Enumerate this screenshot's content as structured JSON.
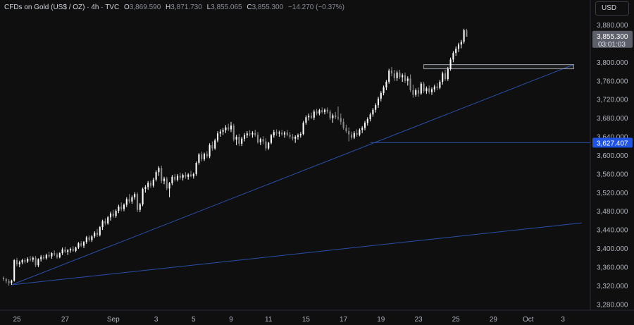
{
  "header": {
    "symbol": "CFDs on Gold (US$ / OZ)",
    "interval": "4h",
    "source": "TVC",
    "o_label": "O",
    "o": "3,869.590",
    "h_label": "H",
    "h": "3,871.730",
    "l_label": "L",
    "l": "3,855.065",
    "c_label": "C",
    "c": "3,855.300",
    "change": "−14.270 (−0.37%)"
  },
  "currency_button": "USD",
  "colors": {
    "background": "#0f0f0f",
    "candle_up": "#ffffff",
    "candle_down": "#8c8c8c",
    "trendline": "#2a4fa8",
    "support_label": "#1e53e5",
    "price_label": "#5d606b"
  },
  "chart_data": {
    "type": "candlestick",
    "title": "",
    "ylim": [
      3260,
      3900
    ],
    "y_ticks": [
      "3,880.000",
      "3,840.000",
      "3,800.000",
      "3,760.000",
      "3,720.000",
      "3,680.000",
      "3,640.000",
      "3,600.000",
      "3,560.000",
      "3,520.000",
      "3,480.000",
      "3,440.000",
      "3,400.000",
      "3,360.000",
      "3,320.000",
      "3,280.000"
    ],
    "y_tick_values": [
      3880,
      3840,
      3800,
      3760,
      3720,
      3680,
      3640,
      3600,
      3560,
      3520,
      3480,
      3440,
      3400,
      3360,
      3320,
      3280
    ],
    "x_ticks": [
      "25",
      "27",
      "Sep",
      "3",
      "5",
      "9",
      "11",
      "15",
      "17",
      "19",
      "23",
      "25",
      "29",
      "Oct",
      "3"
    ],
    "x_tick_index": [
      5,
      23,
      41,
      57,
      71,
      85,
      99,
      113,
      127,
      141,
      155,
      169,
      183,
      196,
      209
    ],
    "x_count": 216,
    "last_price_label": "3,855.300",
    "countdown_label": "03:01:03",
    "last_price": 3855.3,
    "support_label": "3,627.407",
    "support_value": 3627.407,
    "support_from_index": 137,
    "resistance_box": {
      "from_index": 157,
      "to_index": 213,
      "low": 3786,
      "high": 3795
    },
    "trendlines": [
      {
        "from": [
          3,
          3322
        ],
        "to": [
          213,
          3795
        ]
      },
      {
        "from": [
          3,
          3322
        ],
        "to": [
          216,
          3455
        ]
      }
    ],
    "series": [
      {
        "values": [
          [
            3337,
            3340,
            3330,
            3334
          ],
          [
            3334,
            3337,
            3325,
            3330
          ],
          [
            3330,
            3334,
            3320,
            3326
          ],
          [
            3326,
            3333,
            3322,
            3331
          ],
          [
            3331,
            3377,
            3329,
            3375
          ],
          [
            3375,
            3380,
            3362,
            3366
          ],
          [
            3366,
            3374,
            3360,
            3370
          ],
          [
            3370,
            3378,
            3366,
            3375
          ],
          [
            3375,
            3379,
            3368,
            3372
          ],
          [
            3372,
            3381,
            3369,
            3378
          ],
          [
            3378,
            3384,
            3372,
            3376
          ],
          [
            3376,
            3383,
            3371,
            3380
          ],
          [
            3380,
            3384,
            3360,
            3364
          ],
          [
            3364,
            3379,
            3360,
            3377
          ],
          [
            3377,
            3386,
            3372,
            3382
          ],
          [
            3382,
            3386,
            3376,
            3379
          ],
          [
            3379,
            3389,
            3376,
            3386
          ],
          [
            3386,
            3393,
            3380,
            3383
          ],
          [
            3383,
            3392,
            3378,
            3390
          ],
          [
            3390,
            3396,
            3384,
            3387
          ],
          [
            3387,
            3391,
            3378,
            3381
          ],
          [
            3381,
            3392,
            3379,
            3390
          ],
          [
            3390,
            3402,
            3386,
            3398
          ],
          [
            3398,
            3404,
            3390,
            3393
          ],
          [
            3393,
            3399,
            3386,
            3396
          ],
          [
            3396,
            3402,
            3391,
            3399
          ],
          [
            3399,
            3405,
            3393,
            3395
          ],
          [
            3395,
            3404,
            3392,
            3402
          ],
          [
            3402,
            3414,
            3399,
            3411
          ],
          [
            3411,
            3416,
            3403,
            3406
          ],
          [
            3406,
            3416,
            3401,
            3414
          ],
          [
            3414,
            3427,
            3410,
            3424
          ],
          [
            3424,
            3428,
            3415,
            3418
          ],
          [
            3418,
            3429,
            3414,
            3426
          ],
          [
            3426,
            3437,
            3422,
            3434
          ],
          [
            3434,
            3442,
            3425,
            3429
          ],
          [
            3429,
            3448,
            3426,
            3446
          ],
          [
            3446,
            3462,
            3440,
            3459
          ],
          [
            3459,
            3465,
            3450,
            3454
          ],
          [
            3454,
            3470,
            3451,
            3467
          ],
          [
            3467,
            3479,
            3460,
            3475
          ],
          [
            3475,
            3483,
            3466,
            3470
          ],
          [
            3470,
            3484,
            3466,
            3481
          ],
          [
            3481,
            3494,
            3476,
            3490
          ],
          [
            3490,
            3499,
            3480,
            3485
          ],
          [
            3485,
            3497,
            3480,
            3494
          ],
          [
            3494,
            3510,
            3489,
            3506
          ],
          [
            3506,
            3517,
            3497,
            3501
          ],
          [
            3501,
            3514,
            3496,
            3510
          ],
          [
            3510,
            3521,
            3505,
            3517
          ],
          [
            3517,
            3521,
            3478,
            3483
          ],
          [
            3483,
            3498,
            3478,
            3495
          ],
          [
            3495,
            3531,
            3491,
            3528
          ],
          [
            3528,
            3536,
            3520,
            3532
          ],
          [
            3532,
            3545,
            3526,
            3541
          ],
          [
            3541,
            3546,
            3530,
            3535
          ],
          [
            3535,
            3552,
            3531,
            3548
          ],
          [
            3548,
            3568,
            3544,
            3564
          ],
          [
            3564,
            3577,
            3556,
            3573
          ],
          [
            3573,
            3578,
            3540,
            3545
          ],
          [
            3545,
            3554,
            3538,
            3550
          ],
          [
            3550,
            3554,
            3525,
            3529
          ],
          [
            3529,
            3543,
            3510,
            3540
          ],
          [
            3540,
            3558,
            3536,
            3554
          ],
          [
            3554,
            3560,
            3544,
            3548
          ],
          [
            3548,
            3560,
            3544,
            3556
          ],
          [
            3556,
            3563,
            3548,
            3552
          ],
          [
            3552,
            3561,
            3546,
            3558
          ],
          [
            3558,
            3564,
            3550,
            3554
          ],
          [
            3554,
            3562,
            3548,
            3559
          ],
          [
            3559,
            3567,
            3553,
            3555
          ],
          [
            3555,
            3563,
            3550,
            3560
          ],
          [
            3560,
            3587,
            3556,
            3584
          ],
          [
            3584,
            3605,
            3580,
            3602
          ],
          [
            3602,
            3608,
            3587,
            3592
          ],
          [
            3592,
            3606,
            3588,
            3603
          ],
          [
            3603,
            3609,
            3594,
            3598
          ],
          [
            3598,
            3626,
            3594,
            3622
          ],
          [
            3622,
            3630,
            3610,
            3615
          ],
          [
            3615,
            3636,
            3612,
            3632
          ],
          [
            3632,
            3652,
            3628,
            3647
          ],
          [
            3647,
            3656,
            3640,
            3651
          ],
          [
            3651,
            3659,
            3644,
            3654
          ],
          [
            3654,
            3665,
            3648,
            3660
          ],
          [
            3660,
            3668,
            3652,
            3656
          ],
          [
            3656,
            3672,
            3650,
            3664
          ],
          [
            3664,
            3668,
            3630,
            3634
          ],
          [
            3634,
            3644,
            3622,
            3640
          ],
          [
            3640,
            3646,
            3620,
            3625
          ],
          [
            3625,
            3640,
            3620,
            3636
          ],
          [
            3636,
            3648,
            3630,
            3643
          ],
          [
            3643,
            3652,
            3637,
            3647
          ],
          [
            3647,
            3654,
            3641,
            3645
          ],
          [
            3645,
            3652,
            3638,
            3648
          ],
          [
            3648,
            3655,
            3640,
            3644
          ],
          [
            3644,
            3650,
            3625,
            3628
          ],
          [
            3628,
            3638,
            3622,
            3635
          ],
          [
            3635,
            3641,
            3624,
            3630
          ],
          [
            3630,
            3637,
            3610,
            3615
          ],
          [
            3615,
            3629,
            3612,
            3627
          ],
          [
            3627,
            3646,
            3624,
            3643
          ],
          [
            3643,
            3655,
            3638,
            3650
          ],
          [
            3650,
            3656,
            3642,
            3647
          ],
          [
            3647,
            3653,
            3640,
            3649
          ],
          [
            3649,
            3655,
            3642,
            3645
          ],
          [
            3645,
            3652,
            3638,
            3649
          ],
          [
            3649,
            3655,
            3641,
            3644
          ],
          [
            3644,
            3650,
            3636,
            3640
          ],
          [
            3640,
            3646,
            3632,
            3636
          ],
          [
            3636,
            3643,
            3627,
            3640
          ],
          [
            3640,
            3647,
            3634,
            3643
          ],
          [
            3643,
            3650,
            3638,
            3646
          ],
          [
            3646,
            3674,
            3643,
            3670
          ],
          [
            3670,
            3686,
            3666,
            3682
          ],
          [
            3682,
            3690,
            3675,
            3685
          ],
          [
            3685,
            3692,
            3678,
            3681
          ],
          [
            3681,
            3698,
            3676,
            3694
          ],
          [
            3694,
            3700,
            3686,
            3690
          ],
          [
            3690,
            3700,
            3686,
            3697
          ],
          [
            3697,
            3703,
            3690,
            3693
          ],
          [
            3693,
            3701,
            3688,
            3698
          ],
          [
            3698,
            3703,
            3690,
            3694
          ],
          [
            3694,
            3698,
            3676,
            3680
          ],
          [
            3680,
            3690,
            3670,
            3686
          ],
          [
            3686,
            3693,
            3678,
            3682
          ],
          [
            3682,
            3705,
            3676,
            3680
          ],
          [
            3680,
            3690,
            3666,
            3672
          ],
          [
            3672,
            3679,
            3655,
            3659
          ],
          [
            3659,
            3666,
            3648,
            3652
          ],
          [
            3652,
            3660,
            3630,
            3645
          ],
          [
            3645,
            3651,
            3634,
            3638
          ],
          [
            3638,
            3652,
            3635,
            3648
          ],
          [
            3648,
            3656,
            3640,
            3644
          ],
          [
            3644,
            3658,
            3641,
            3655
          ],
          [
            3655,
            3663,
            3648,
            3659
          ],
          [
            3659,
            3674,
            3654,
            3670
          ],
          [
            3670,
            3682,
            3664,
            3678
          ],
          [
            3678,
            3692,
            3673,
            3688
          ],
          [
            3688,
            3702,
            3683,
            3698
          ],
          [
            3698,
            3712,
            3692,
            3708
          ],
          [
            3708,
            3726,
            3702,
            3722
          ],
          [
            3722,
            3738,
            3716,
            3734
          ],
          [
            3734,
            3750,
            3729,
            3746
          ],
          [
            3746,
            3762,
            3740,
            3758
          ],
          [
            3758,
            3786,
            3754,
            3782
          ],
          [
            3782,
            3790,
            3770,
            3776
          ],
          [
            3776,
            3784,
            3760,
            3766
          ],
          [
            3766,
            3782,
            3760,
            3778
          ],
          [
            3778,
            3784,
            3764,
            3768
          ],
          [
            3768,
            3776,
            3758,
            3772
          ],
          [
            3772,
            3778,
            3755,
            3760
          ],
          [
            3760,
            3770,
            3750,
            3765
          ],
          [
            3765,
            3774,
            3736,
            3740
          ],
          [
            3740,
            3752,
            3724,
            3730
          ],
          [
            3730,
            3744,
            3726,
            3740
          ],
          [
            3740,
            3746,
            3726,
            3733
          ],
          [
            3733,
            3758,
            3730,
            3754
          ],
          [
            3754,
            3758,
            3734,
            3738
          ],
          [
            3738,
            3748,
            3732,
            3744
          ],
          [
            3744,
            3750,
            3732,
            3736
          ],
          [
            3736,
            3746,
            3730,
            3742
          ],
          [
            3742,
            3752,
            3736,
            3748
          ],
          [
            3748,
            3755,
            3740,
            3745
          ],
          [
            3745,
            3762,
            3742,
            3758
          ],
          [
            3758,
            3780,
            3752,
            3776
          ],
          [
            3776,
            3784,
            3760,
            3764
          ],
          [
            3764,
            3790,
            3760,
            3786
          ],
          [
            3786,
            3810,
            3782,
            3806
          ],
          [
            3806,
            3824,
            3800,
            3820
          ],
          [
            3820,
            3834,
            3814,
            3829
          ],
          [
            3829,
            3842,
            3822,
            3838
          ],
          [
            3838,
            3848,
            3830,
            3844
          ],
          [
            3844,
            3872,
            3840,
            3869
          ],
          [
            3869,
            3872,
            3855,
            3855
          ]
        ]
      }
    ]
  }
}
